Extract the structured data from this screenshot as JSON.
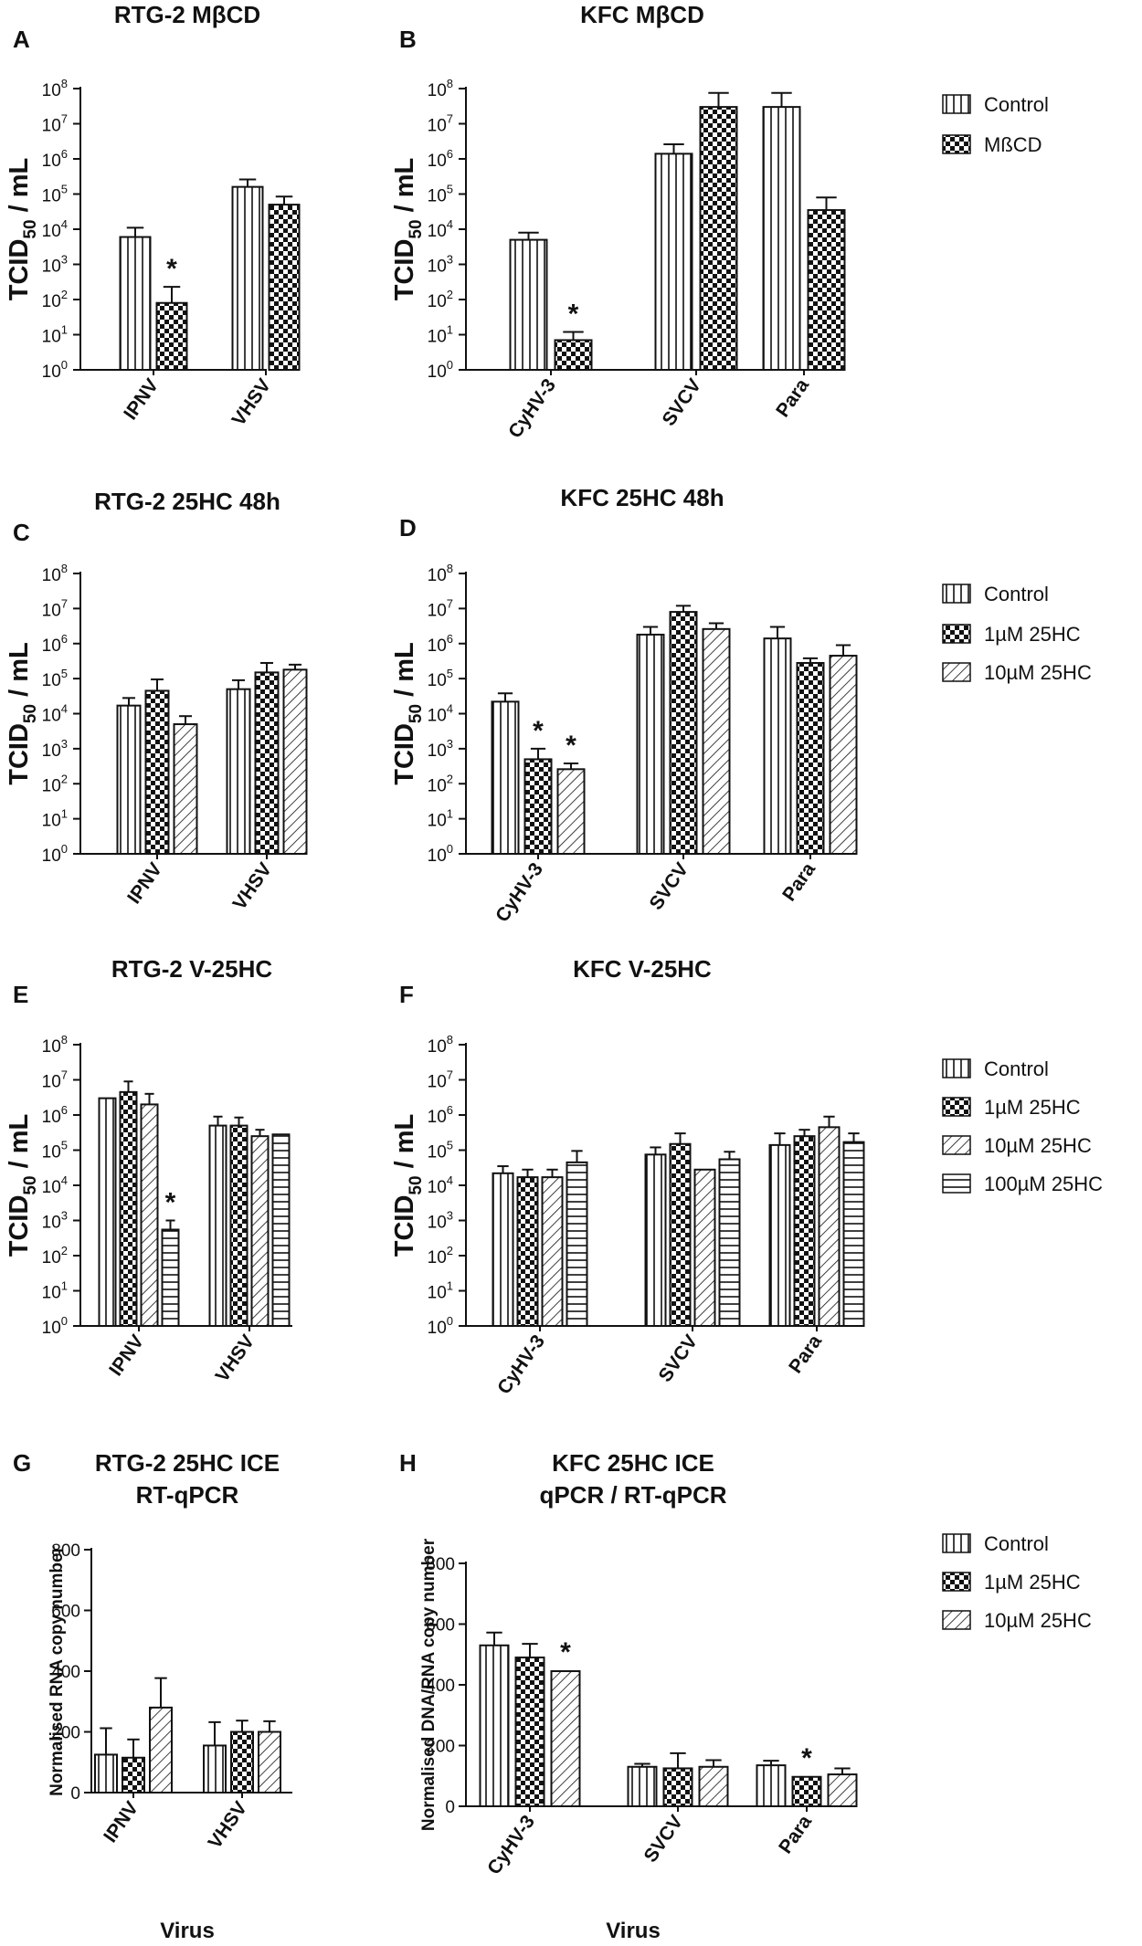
{
  "legends": [
    {
      "entries": [
        "Control",
        "MßCD"
      ]
    },
    {
      "entries": [
        "Control",
        "1µM 25HC",
        "10µM 25HC"
      ]
    },
    {
      "entries": [
        "Control",
        "1µM 25HC",
        "10µM 25HC",
        "100µM 25HC"
      ]
    },
    {
      "entries": [
        "Control",
        "1µM 25HC",
        "10µM 25HC"
      ]
    }
  ],
  "x_axis_labels": [
    "Virus",
    "Virus"
  ],
  "chart_data": [
    {
      "panel": "A",
      "type": "bar",
      "title": [
        "RTG-2 MβCD"
      ],
      "ylabel": "TCID50 / mL",
      "scale": "log",
      "ylim": [
        0,
        8
      ],
      "categories": [
        "IPNV",
        "VHSV"
      ],
      "series": [
        {
          "name": "Control",
          "values": [
            6000,
            160000
          ],
          "errors": [
            11000,
            260000
          ]
        },
        {
          "name": "MßCD",
          "values": [
            80,
            50000
          ],
          "errors": [
            230,
            85000
          ]
        }
      ],
      "annotations": [
        {
          "text": "*",
          "category": "IPNV",
          "series": "MßCD"
        }
      ]
    },
    {
      "panel": "B",
      "type": "bar",
      "title": [
        "KFC MβCD"
      ],
      "ylabel": "TCID50 / mL",
      "scale": "log",
      "ylim": [
        0,
        8
      ],
      "categories": [
        "CyHV-3",
        "SVCV",
        "Para"
      ],
      "series": [
        {
          "name": "Control",
          "values": [
            5000,
            1400000,
            30000000
          ],
          "errors": [
            8000,
            2600000,
            75000000
          ]
        },
        {
          "name": "MßCD",
          "values": [
            7,
            30000000,
            35000
          ],
          "errors": [
            12,
            75000000,
            80000
          ]
        }
      ],
      "annotations": [
        {
          "text": "*",
          "category": "CyHV-3",
          "series": "MßCD"
        }
      ]
    },
    {
      "panel": "C",
      "type": "bar",
      "title": [
        "RTG-2 25HC 48h"
      ],
      "ylabel": "TCID50 / mL",
      "scale": "log",
      "ylim": [
        0,
        8
      ],
      "categories": [
        "IPNV",
        "VHSV"
      ],
      "series": [
        {
          "name": "Control",
          "values": [
            17000,
            50000
          ],
          "errors": [
            28000,
            90000
          ]
        },
        {
          "name": "1µM 25HC",
          "values": [
            45000,
            150000
          ],
          "errors": [
            95000,
            280000
          ]
        },
        {
          "name": "10µM 25HC",
          "values": [
            5000,
            180000
          ],
          "errors": [
            8500,
            250000
          ]
        }
      ],
      "annotations": []
    },
    {
      "panel": "D",
      "type": "bar",
      "title": [
        "KFC 25HC 48h"
      ],
      "ylabel": "TCID50 / mL",
      "scale": "log",
      "ylim": [
        0,
        8
      ],
      "categories": [
        "CyHV-3",
        "SVCV",
        "Para"
      ],
      "series": [
        {
          "name": "Control",
          "values": [
            22000,
            1800000,
            1400000
          ],
          "errors": [
            38000,
            3000000,
            3000000
          ]
        },
        {
          "name": "1µM 25HC",
          "values": [
            500,
            8000000,
            280000
          ],
          "errors": [
            1000,
            12000000,
            380000
          ]
        },
        {
          "name": "10µM 25HC",
          "values": [
            260,
            2600000,
            450000
          ],
          "errors": [
            380,
            3800000,
            900000
          ]
        }
      ],
      "annotations": [
        {
          "text": "*",
          "category": "CyHV-3",
          "series": "1µM 25HC"
        },
        {
          "text": "*",
          "category": "CyHV-3",
          "series": "10µM 25HC"
        }
      ]
    },
    {
      "panel": "E",
      "type": "bar",
      "title": [
        "RTG-2 V-25HC"
      ],
      "ylabel": "TCID50 / mL",
      "scale": "log",
      "ylim": [
        0,
        8
      ],
      "categories": [
        "IPNV",
        "VHSV"
      ],
      "series": [
        {
          "name": "Control",
          "values": [
            3000000,
            500000
          ],
          "errors": [
            3000000,
            900000
          ]
        },
        {
          "name": "1µM 25HC",
          "values": [
            4500000,
            500000
          ],
          "errors": [
            9000000,
            850000
          ]
        },
        {
          "name": "10µM 25HC",
          "values": [
            2000000,
            250000
          ],
          "errors": [
            4000000,
            380000
          ]
        },
        {
          "name": "100µM 25HC",
          "values": [
            550,
            280000
          ],
          "errors": [
            1000,
            280000
          ]
        }
      ],
      "annotations": [
        {
          "text": "*",
          "category": "IPNV",
          "series": "100µM 25HC"
        }
      ]
    },
    {
      "panel": "F",
      "type": "bar",
      "title": [
        "KFC V-25HC"
      ],
      "ylabel": "TCID50 / mL",
      "scale": "log",
      "ylim": [
        0,
        8
      ],
      "categories": [
        "CyHV-3",
        "SVCV",
        "Para"
      ],
      "series": [
        {
          "name": "Control",
          "values": [
            22000,
            75000,
            140000
          ],
          "errors": [
            35000,
            120000,
            300000
          ]
        },
        {
          "name": "1µM 25HC",
          "values": [
            17000,
            150000,
            250000
          ],
          "errors": [
            28000,
            300000,
            380000
          ]
        },
        {
          "name": "10µM 25HC",
          "values": [
            17000,
            28000,
            450000
          ],
          "errors": [
            28000,
            28000,
            900000
          ]
        },
        {
          "name": "100µM 25HC",
          "values": [
            45000,
            55000,
            170000
          ],
          "errors": [
            95000,
            90000,
            300000
          ]
        }
      ],
      "annotations": []
    },
    {
      "panel": "G",
      "type": "bar",
      "title": [
        "RTG-2 25HC ICE",
        "RT-qPCR"
      ],
      "ylabel": "Normalised RNA copy number",
      "scale": "linear",
      "ylim": [
        0,
        800
      ],
      "ticks": [
        0,
        200,
        400,
        600,
        800
      ],
      "categories": [
        "IPNV",
        "VHSV"
      ],
      "series": [
        {
          "name": "Control",
          "values": [
            125,
            155
          ],
          "errors": [
            212,
            232
          ]
        },
        {
          "name": "1µM 25HC",
          "values": [
            115,
            200
          ],
          "errors": [
            175,
            237
          ]
        },
        {
          "name": "10µM 25HC",
          "values": [
            280,
            200
          ],
          "errors": [
            377,
            235
          ]
        }
      ],
      "annotations": []
    },
    {
      "panel": "H",
      "type": "bar",
      "title": [
        "KFC 25HC ICE",
        "qPCR / RT-qPCR"
      ],
      "ylabel": "Normalised DNA/RNA copy number",
      "scale": "linear",
      "ylim": [
        0,
        800
      ],
      "ticks": [
        0,
        200,
        400,
        600,
        800
      ],
      "categories": [
        "CyHV-3",
        "SVCV",
        "Para"
      ],
      "series": [
        {
          "name": "Control",
          "values": [
            530,
            130,
            135
          ],
          "errors": [
            572,
            140,
            150
          ]
        },
        {
          "name": "1µM 25HC",
          "values": [
            490,
            125,
            97
          ],
          "errors": [
            535,
            175,
            100
          ]
        },
        {
          "name": "10µM 25HC",
          "values": [
            445,
            130,
            105
          ],
          "errors": [
            448,
            152,
            125
          ]
        }
      ],
      "annotations": [
        {
          "text": "*",
          "category": "CyHV-3",
          "series": "10µM 25HC"
        },
        {
          "text": "*",
          "category": "Para",
          "series": "1µM 25HC"
        }
      ]
    }
  ]
}
